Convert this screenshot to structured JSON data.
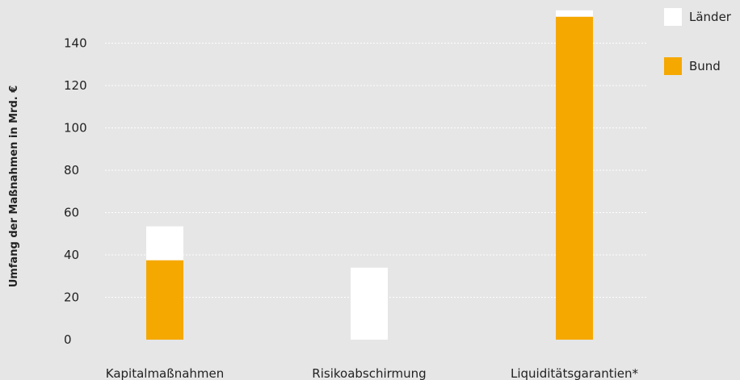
{
  "chart_data": {
    "type": "bar",
    "stacked": true,
    "categories": [
      "Kapitalmaßnahmen",
      "Risikoabschirmung",
      "Liquiditätsgarantien*"
    ],
    "series": [
      {
        "name": "Bund",
        "values": [
          37.5,
          0,
          152.5
        ],
        "color": "#f5a800"
      },
      {
        "name": "Länder",
        "values": [
          16,
          34,
          3
        ],
        "color": "#ffffff"
      }
    ],
    "ylabel": "Umfang der Maßnahmen in Mrd. €",
    "yticks": [
      0,
      20,
      40,
      60,
      80,
      100,
      120,
      140
    ],
    "ylim": [
      0,
      157
    ],
    "grid": true,
    "legend_position": "top-right"
  }
}
